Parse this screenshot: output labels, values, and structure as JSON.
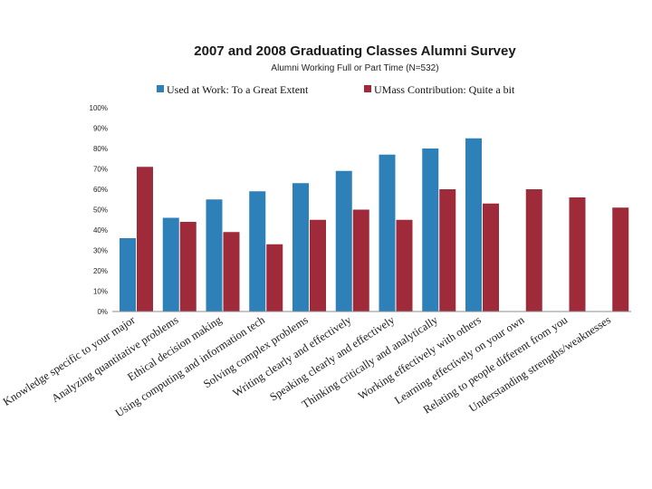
{
  "chart_data": {
    "type": "bar",
    "title": "2007 and 2008 Graduating Classes Alumni Survey",
    "subtitle": "Alumni Working Full or Part Time (N=532)",
    "ylim": [
      0,
      100
    ],
    "yticks": [
      "0%",
      "10%",
      "20%",
      "30%",
      "40%",
      "50%",
      "60%",
      "70%",
      "80%",
      "90%",
      "100%"
    ],
    "legend_position": "top",
    "grid": false,
    "categories": [
      "Knowledge specific to your major",
      "Analyzing quantitative problems",
      "Ethical decision making",
      "Using computing and information tech",
      "Solving complex problems",
      "Writing clearly and effectively",
      "Speaking clearly and effectively",
      "Thinking critically and analytically",
      "Working effectively with others",
      "Learning effectively on your own",
      "Relating to people different from you",
      "Understanding strengths/weaknesses"
    ],
    "series": [
      {
        "name": "Used at Work: To a Great Extent",
        "color": "#2e80b8",
        "values": [
          36,
          46,
          55,
          59,
          63,
          69,
          77,
          80,
          85,
          null,
          null,
          null
        ]
      },
      {
        "name": "UMass Contribution: Quite a bit",
        "color": "#9e2a3a",
        "values": [
          71,
          44,
          39,
          33,
          45,
          50,
          45,
          60,
          53,
          60,
          56,
          51
        ]
      }
    ]
  }
}
